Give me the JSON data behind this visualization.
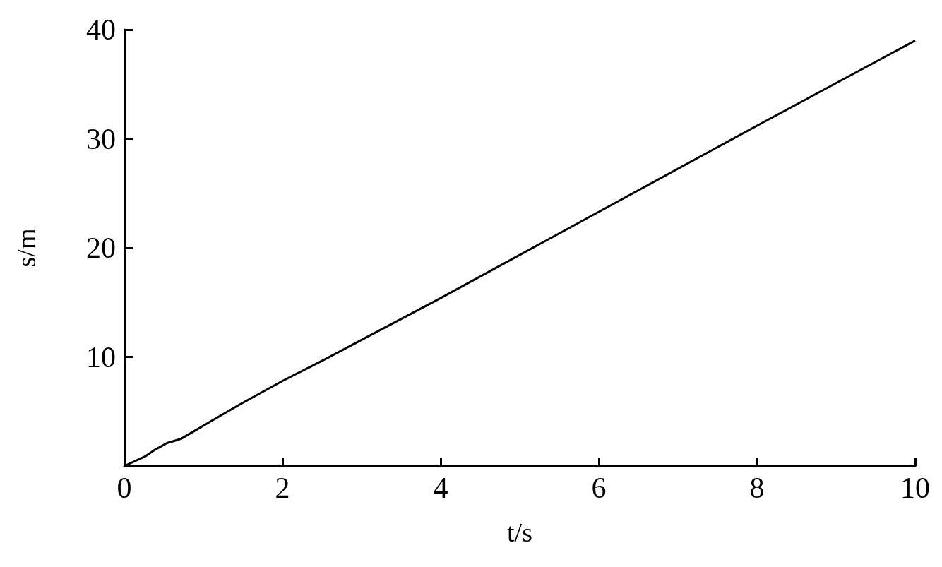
{
  "chart_data": {
    "type": "line",
    "xlabel": "t/s",
    "ylabel": "s/m",
    "x": [
      0,
      0.27,
      0.39,
      0.54,
      0.72,
      0.86,
      1.07,
      1.45,
      2,
      2.49,
      4,
      6,
      8,
      10
    ],
    "series": [
      {
        "color": "#000000",
        "values": [
          0,
          0.9,
          1.5,
          2.1,
          2.5,
          3.1,
          4,
          5.6,
          7.8,
          9.6,
          15.4,
          23.3,
          31.2,
          39
        ]
      }
    ],
    "xlim": [
      0,
      10
    ],
    "xticks": [
      0,
      2,
      4,
      6,
      8,
      10
    ],
    "ylim": [
      0,
      40
    ],
    "yticks": [
      {
        "value": 0,
        "label": null
      },
      10,
      20,
      30,
      40
    ],
    "grid": false,
    "marker": "none",
    "line_style": "solid"
  }
}
